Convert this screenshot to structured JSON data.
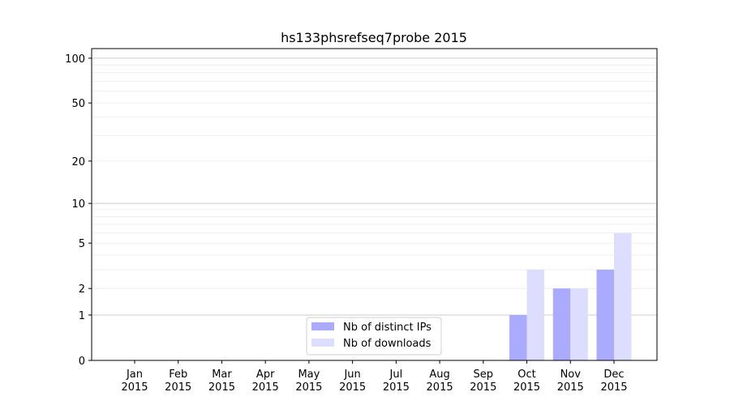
{
  "chart_data": {
    "type": "bar",
    "title": "hs133phsrefseq7probe 2015",
    "xlabel": "",
    "ylabel": "",
    "yscale": "symlog",
    "ylim": [
      0,
      116
    ],
    "yticks": [
      0,
      1,
      2,
      5,
      10,
      20,
      50,
      100
    ],
    "grid": true,
    "legend_position": "bottom-center",
    "categories": [
      "Jan\n2015",
      "Feb\n2015",
      "Mar\n2015",
      "Apr\n2015",
      "May\n2015",
      "Jun\n2015",
      "Jul\n2015",
      "Aug\n2015",
      "Sep\n2015",
      "Oct\n2015",
      "Nov\n2015",
      "Dec\n2015"
    ],
    "series": [
      {
        "name": "Nb of distinct IPs",
        "color": "#aaaaff",
        "values": [
          0,
          0,
          0,
          0,
          0,
          0,
          0,
          0,
          0,
          1,
          2,
          3
        ]
      },
      {
        "name": "Nb of downloads",
        "color": "#ddddff",
        "values": [
          0,
          0,
          0,
          0,
          0,
          0,
          0,
          0,
          0,
          3,
          2,
          6
        ]
      }
    ]
  }
}
